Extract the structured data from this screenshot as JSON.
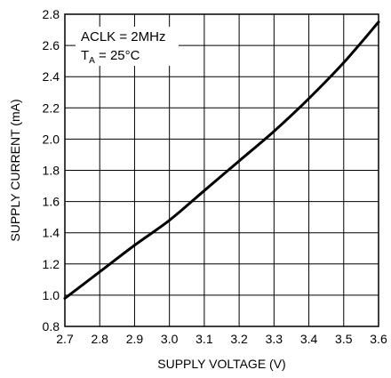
{
  "chart_data": {
    "type": "line",
    "title": "",
    "xlabel": "SUPPLY VOLTAGE (V)",
    "ylabel": "SUPPLY CURRENT (mA)",
    "xlim": [
      2.7,
      3.6
    ],
    "ylim": [
      0.8,
      2.8
    ],
    "x_ticks": [
      "2.7",
      "2.8",
      "2.9",
      "3.0",
      "3.1",
      "3.2",
      "3.3",
      "3.4",
      "3.5",
      "3.6"
    ],
    "y_ticks": [
      "0.8",
      "1.0",
      "1.2",
      "1.4",
      "1.6",
      "1.8",
      "2.0",
      "2.2",
      "2.4",
      "2.6",
      "2.8"
    ],
    "grid": true,
    "annotations": {
      "line1": "ACLK = 2MHz",
      "line2_main": "T",
      "line2_sub": "A",
      "line2_rest": " = 25°C"
    },
    "series": [
      {
        "x": [
          2.7,
          2.8,
          2.9,
          3.0,
          3.1,
          3.2,
          3.3,
          3.4,
          3.5,
          3.6
        ],
        "y": [
          0.98,
          1.15,
          1.32,
          1.48,
          1.67,
          1.86,
          2.05,
          2.26,
          2.49,
          2.75
        ]
      }
    ]
  }
}
